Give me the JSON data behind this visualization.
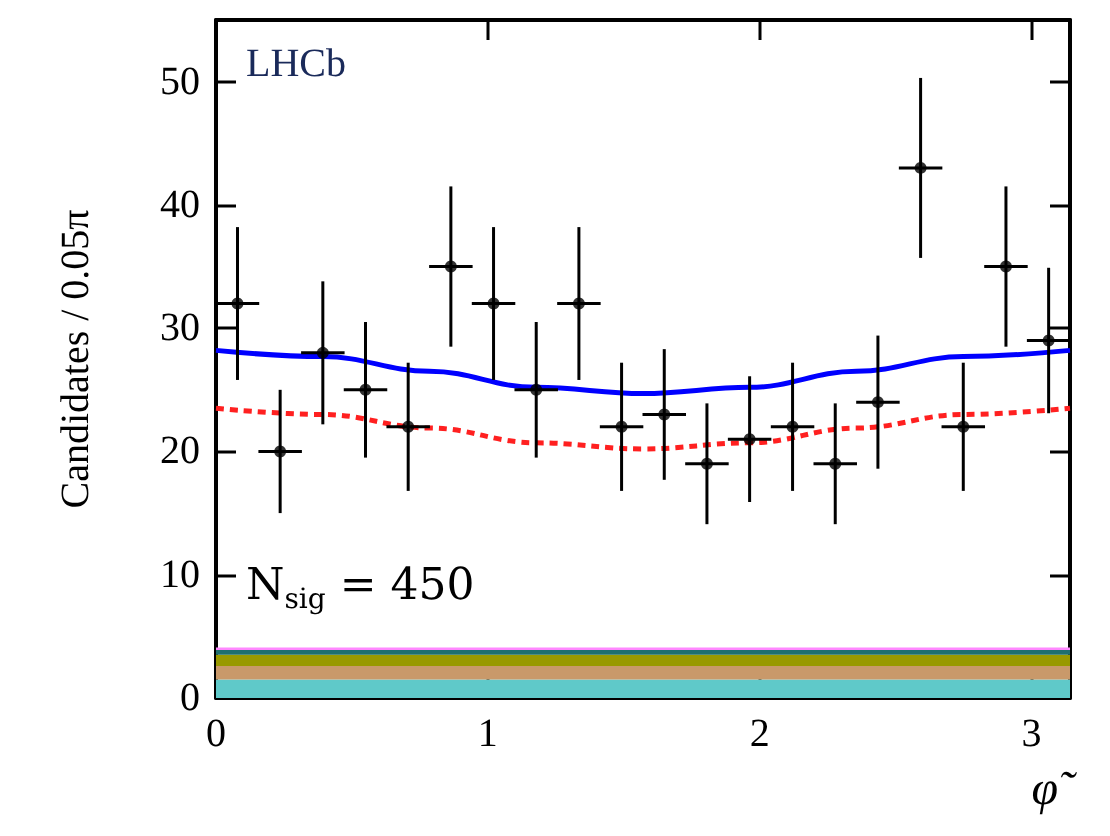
{
  "chart_data": {
    "type": "scatter",
    "xlabel": "φ̃",
    "ylabel": "Candidates / 0.05π",
    "xlim": [
      0,
      3.1416
    ],
    "xticks": [
      0,
      1,
      2,
      3
    ],
    "ylim": [
      0,
      55
    ],
    "yticks": [
      0,
      10,
      20,
      30,
      40,
      50
    ],
    "grid": false,
    "stacked": true,
    "annotations": [
      "LHCb",
      "N$_{sig}$ = 450"
    ],
    "series": [
      {
        "type": "area",
        "color": "#5fc9c9",
        "x": [
          0,
          3.1416
        ],
        "values": [
          1.5,
          1.5
        ]
      },
      {
        "type": "area",
        "color": "#c9996a",
        "x": [
          0,
          3.1416
        ],
        "values": [
          1.1,
          1.1
        ]
      },
      {
        "type": "area",
        "color": "#999900",
        "x": [
          0,
          3.1416
        ],
        "values": [
          0.9,
          0.9
        ]
      },
      {
        "type": "area",
        "color": "#1f6f6f",
        "x": [
          0,
          3.1416
        ],
        "values": [
          0.4,
          0.4
        ]
      },
      {
        "type": "area",
        "color": "#ff88ff",
        "x": [
          0,
          3.1416
        ],
        "values": [
          0.2,
          0.2
        ]
      },
      {
        "type": "line",
        "color": "#ff2020",
        "line_style": "dashed",
        "marker": "none",
        "x": [
          0,
          0.393,
          0.785,
          1.178,
          1.571,
          1.963,
          2.356,
          2.749,
          3.1416
        ],
        "values": [
          23.5,
          23.0,
          21.9,
          20.7,
          20.2,
          20.7,
          21.9,
          23.0,
          23.5
        ]
      },
      {
        "type": "line",
        "color": "#0000ff",
        "line_style": "solid",
        "marker": "none",
        "x": [
          0,
          0.393,
          0.785,
          1.178,
          1.571,
          1.963,
          2.356,
          2.749,
          3.1416
        ],
        "values": [
          28.2,
          27.7,
          26.5,
          25.2,
          24.7,
          25.2,
          26.5,
          27.7,
          28.2
        ]
      },
      {
        "color": "#000000",
        "marker": "circle",
        "x": [
          0.079,
          0.236,
          0.393,
          0.55,
          0.707,
          0.864,
          1.021,
          1.178,
          1.335,
          1.492,
          1.649,
          1.806,
          1.963,
          2.121,
          2.278,
          2.435,
          2.592,
          2.749,
          2.906,
          3.063
        ],
        "values": [
          32,
          20,
          28,
          25,
          22,
          35,
          32,
          25,
          32,
          22,
          23,
          19,
          21,
          22,
          19,
          24,
          43,
          22,
          35,
          29
        ],
        "errors": [
          6.2,
          5,
          5.8,
          5.5,
          5.2,
          6.5,
          6.2,
          5.5,
          6.2,
          5.2,
          5.3,
          4.9,
          5.1,
          5.2,
          4.9,
          5.4,
          7.3,
          5.2,
          6.5,
          5.9
        ],
        "xerrors": [
          0.08,
          0.08,
          0.08,
          0.08,
          0.08,
          0.08,
          0.08,
          0.08,
          0.08,
          0.08,
          0.08,
          0.08,
          0.08,
          0.08,
          0.08,
          0.08,
          0.08,
          0.08,
          0.08,
          0.08
        ]
      }
    ]
  }
}
